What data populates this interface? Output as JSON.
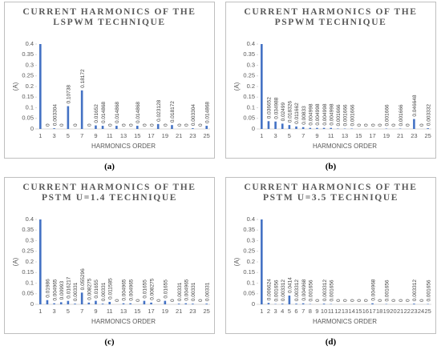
{
  "chart_data": [
    {
      "type": "bar",
      "title": "CURRENT HARMONICS OF THE LSPWM TECHNIQUE",
      "caption": "(a)",
      "x_label": "HARMONICS ORDER",
      "y_label": "(A)",
      "color": "#4472c4",
      "categories": [
        "1",
        null,
        "3",
        null,
        "5",
        null,
        "7",
        null,
        "9",
        null,
        "11",
        null,
        "13",
        null,
        "15",
        null,
        "17",
        null,
        "19",
        null,
        "21",
        null,
        "23",
        null,
        "25"
      ],
      "values": [
        0.4,
        0,
        0.003304,
        0,
        0.10738,
        0,
        0.18172,
        0,
        0.01652,
        0.014868,
        0,
        0.014868,
        0,
        0,
        0.014868,
        0,
        0,
        0.023128,
        0,
        0.018172,
        0,
        0,
        0.003304,
        0,
        0.014868
      ],
      "ylim": [
        0,
        0.4
      ],
      "yticks": [
        0,
        0.05,
        0.1,
        0.15,
        0.2,
        0.25,
        0.3,
        0.35,
        0.4
      ]
    },
    {
      "type": "bar",
      "title": "CURRENT HARMONICS OF THE PSPWM TECHNIQUE",
      "caption": "(b)",
      "x_label": "HARMONICS ORDER",
      "y_label": "(A)",
      "color": "#4472c4",
      "categories": [
        "1",
        null,
        "3",
        null,
        "5",
        null,
        "7",
        null,
        "9",
        null,
        "11",
        null,
        "13",
        null,
        "15",
        null,
        "17",
        null,
        "19",
        null,
        "21",
        null,
        "23",
        null,
        "25"
      ],
      "values": [
        0.4,
        0.036652,
        0.034988,
        0.02499,
        0.018326,
        0.011662,
        0.00833,
        0.004998,
        0.004998,
        0.004998,
        0.004998,
        0.001666,
        0.001666,
        0.001666,
        0,
        0,
        0,
        0,
        0.001666,
        0,
        0.001666,
        0,
        0.046648,
        0,
        0.003332
      ],
      "ylim": [
        0,
        0.4
      ],
      "yticks": [
        0,
        0.05,
        0.1,
        0.15,
        0.2,
        0.25,
        0.3,
        0.35,
        0.4
      ]
    },
    {
      "type": "bar",
      "title": "CURRENT HARMONICS OF THE PSTM U=1.4 TECHNIQUE",
      "caption": "(c)",
      "x_label": "HARMONICS ORDER",
      "y_label": "(A)",
      "color": "#4472c4",
      "categories": [
        "1",
        null,
        "3",
        null,
        "5",
        null,
        "7",
        null,
        "9",
        null,
        "11",
        null,
        "13",
        null,
        "15",
        null,
        "17",
        null,
        "19",
        null,
        "21",
        null,
        "23",
        null,
        "25"
      ],
      "values": [
        0.4,
        0.01986,
        0.004965,
        0.00993,
        0.016217,
        0.00331,
        0.055296,
        0.008275,
        0.01655,
        0.00331,
        0.011585,
        0,
        0.004965,
        0.004965,
        0,
        0.01655,
        0.008275,
        0,
        0.01655,
        0,
        0.00331,
        0.004965,
        0.00331,
        0,
        0.00331
      ],
      "ylim": [
        0,
        0.4
      ],
      "yticks": [
        0,
        0.05,
        0.1,
        0.15,
        0.2,
        0.25,
        0.3,
        0.35,
        0.4
      ]
    },
    {
      "type": "bar",
      "title": "CURRENT HARMONICS OF THE PSTM U=3.5 TECHNIQUE",
      "caption": "(d)",
      "x_label": "HARMONICS ORDER",
      "y_label": "(A)",
      "color": "#4472c4",
      "categories": [
        "1",
        "2",
        "3",
        "4",
        "5",
        "6",
        "7",
        "8",
        "9",
        "10",
        "11",
        "12",
        "13",
        "14",
        "15",
        "16",
        "17",
        "18",
        "19",
        "20",
        "21",
        "22",
        "23",
        "24",
        "25"
      ],
      "values": [
        0.4,
        0.006624,
        0.001656,
        0.003312,
        0.0414,
        0.003312,
        0.004968,
        0.001656,
        0,
        0.003312,
        0.001656,
        0,
        0,
        0,
        0,
        0,
        0.004968,
        0,
        0.001656,
        0,
        0,
        0,
        0.003312,
        0,
        0.001656
      ],
      "ylim": [
        0,
        0.4
      ],
      "yticks": [
        0,
        0.05,
        0.1,
        0.15,
        0.2,
        0.25,
        0.3,
        0.35,
        0.4
      ]
    }
  ]
}
